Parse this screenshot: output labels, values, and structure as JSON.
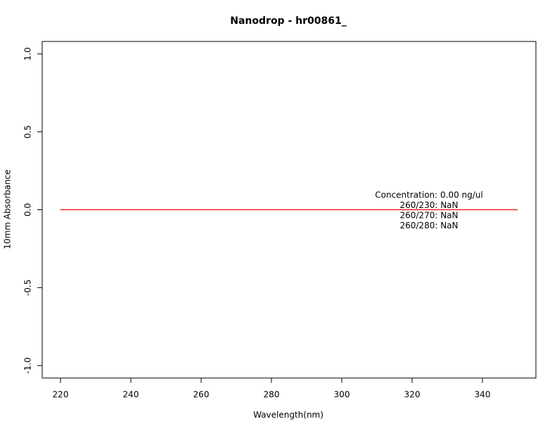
{
  "chart_data": {
    "type": "line",
    "title": "Nanodrop - hr00861_",
    "x_label": "Wavelength(nm)",
    "y_label": "10mm Absorbance",
    "x": [
      220,
      350
    ],
    "series": [
      {
        "color": "#ff0000",
        "values": [
          0,
          0
        ]
      }
    ],
    "xlim": [
      214.8,
      355.2
    ],
    "xticks": [
      220,
      240,
      260,
      280,
      300,
      320,
      340
    ],
    "ylim": [
      -1.08,
      1.08
    ],
    "yticks": [
      {
        "value": -1,
        "label": "-1.0"
      },
      {
        "value": -0.5,
        "label": "-0.5"
      },
      {
        "value": 0,
        "label": "0.0"
      },
      {
        "value": 0.5,
        "label": "0.5"
      },
      {
        "value": 1,
        "label": "1.0"
      }
    ],
    "annotations": [
      "Concentration: 0.00 ng/ul",
      "260/230: NaN",
      "260/270: NaN",
      "260/280: NaN"
    ]
  }
}
